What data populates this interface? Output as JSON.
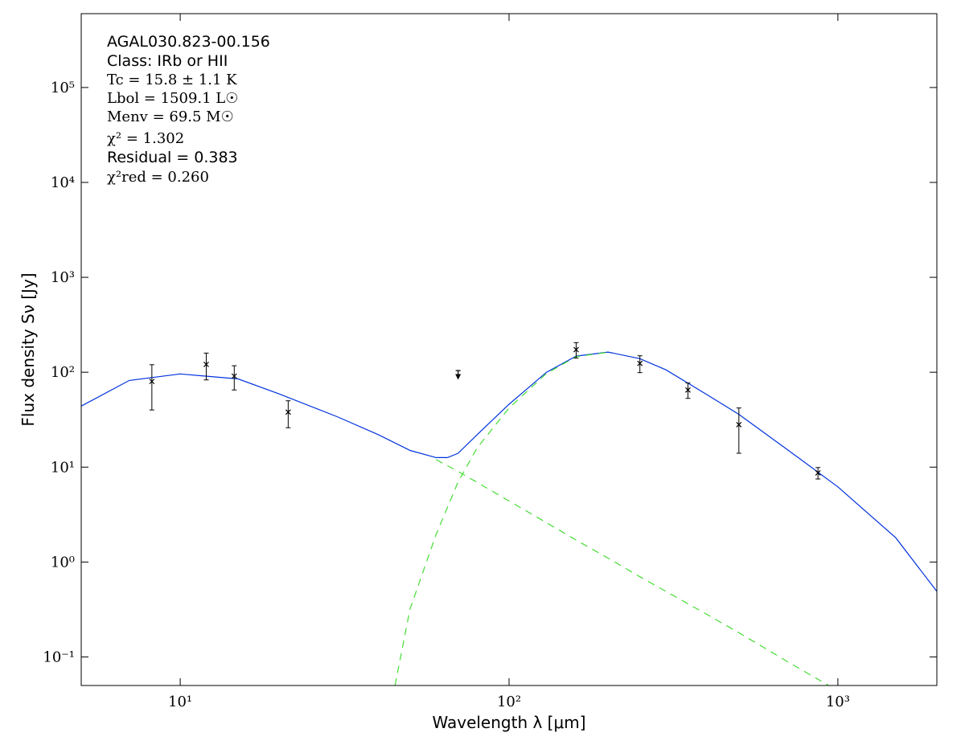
{
  "chart_data": {
    "type": "line",
    "xlabel": "Wavelength λ [μm]",
    "ylabel": "Flux density Sν [Jy]",
    "xscale": "log",
    "yscale": "log",
    "xlim": [
      5,
      2000
    ],
    "ylim": [
      0.05,
      600000
    ],
    "xticks": [
      {
        "value": 10,
        "label": "10¹"
      },
      {
        "value": 100,
        "label": "10²"
      },
      {
        "value": 1000,
        "label": "10³"
      }
    ],
    "yticks": [
      {
        "value": 0.1,
        "label": "10⁻¹"
      },
      {
        "value": 1,
        "label": "10⁰"
      },
      {
        "value": 10,
        "label": "10¹"
      },
      {
        "value": 100,
        "label": "10²"
      },
      {
        "value": 1000,
        "label": "10³"
      },
      {
        "value": 10000,
        "label": "10⁴"
      },
      {
        "value": 100000,
        "label": "10⁵"
      }
    ],
    "annotations": [
      "AGAL030.823-00.156",
      "Class: IRb or HII",
      "Tc = 15.8 ± 1.1 K",
      "Lbol = 1509.1 L☉",
      "Menv = 69.5 M☉",
      "χ² = 1.302",
      "Residual = 0.383",
      "χ²red = 0.260"
    ],
    "series": [
      {
        "color": "#0033dd",
        "dash": false,
        "x": [
          5,
          7,
          10,
          15,
          20,
          30,
          40,
          50,
          60,
          65,
          70,
          80,
          100,
          130,
          160,
          200,
          250,
          300,
          400,
          500,
          700,
          1000,
          1500,
          2000
        ],
        "values": [
          44,
          82,
          96,
          85,
          59,
          34,
          22,
          15,
          12.6,
          12.6,
          14,
          22,
          46,
          100,
          148,
          163,
          139,
          106,
          58,
          36,
          15.4,
          6.2,
          1.8,
          0.49
        ]
      },
      {
        "color": "#44dd33",
        "dash": true,
        "x": [
          60,
          70,
          80,
          100,
          130,
          160,
          200,
          250,
          300,
          400,
          500,
          700,
          1000
        ],
        "values": [
          12,
          9,
          6.9,
          4.4,
          2.6,
          1.7,
          1.1,
          0.7,
          0.49,
          0.28,
          0.18,
          0.09,
          0.044
        ]
      },
      {
        "color": "#44dd33",
        "dash": true,
        "x": [
          45,
          50,
          60,
          70,
          80,
          100,
          130,
          160,
          200
        ],
        "values": [
          0.05,
          0.32,
          1.95,
          7,
          16,
          42,
          97,
          146,
          162
        ]
      }
    ],
    "points": {
      "color": "#000000",
      "x": [
        8.2,
        12,
        14.6,
        21.3,
        160,
        250,
        350,
        500,
        870
      ],
      "values": [
        80,
        121,
        91,
        38,
        173,
        124,
        65,
        28,
        8.7
      ],
      "errors": [
        40,
        38,
        26,
        12,
        32,
        25,
        12,
        14,
        1.2
      ]
    },
    "upper_limits": {
      "x": [
        70
      ],
      "values": [
        104
      ]
    }
  }
}
